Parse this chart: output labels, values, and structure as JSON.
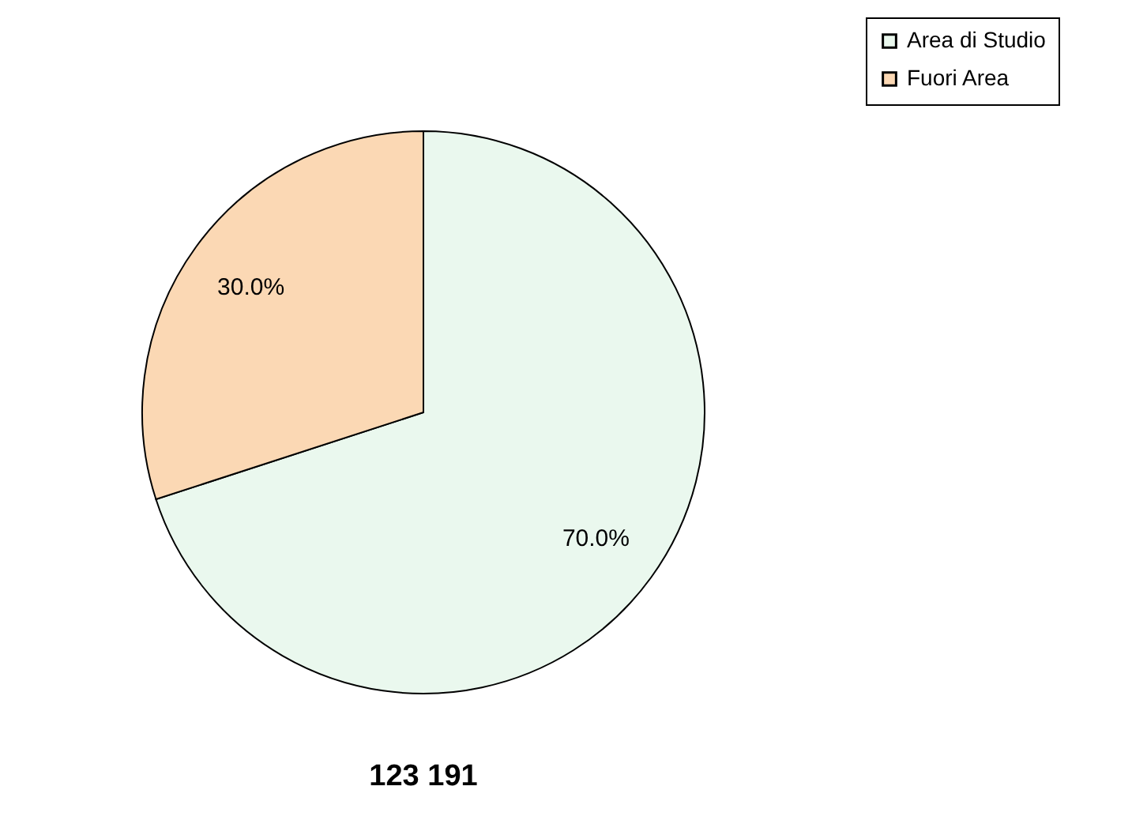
{
  "chart_data": {
    "type": "pie",
    "categories": [
      "Area di Studio",
      "Fuori Area"
    ],
    "values": [
      70,
      30
    ],
    "colors": [
      "#eaf8ee",
      "#fbd8b4"
    ],
    "value_labels": [
      "70.0%",
      "30.0%"
    ],
    "annotations": [
      "123 191"
    ],
    "legend": "top right"
  }
}
